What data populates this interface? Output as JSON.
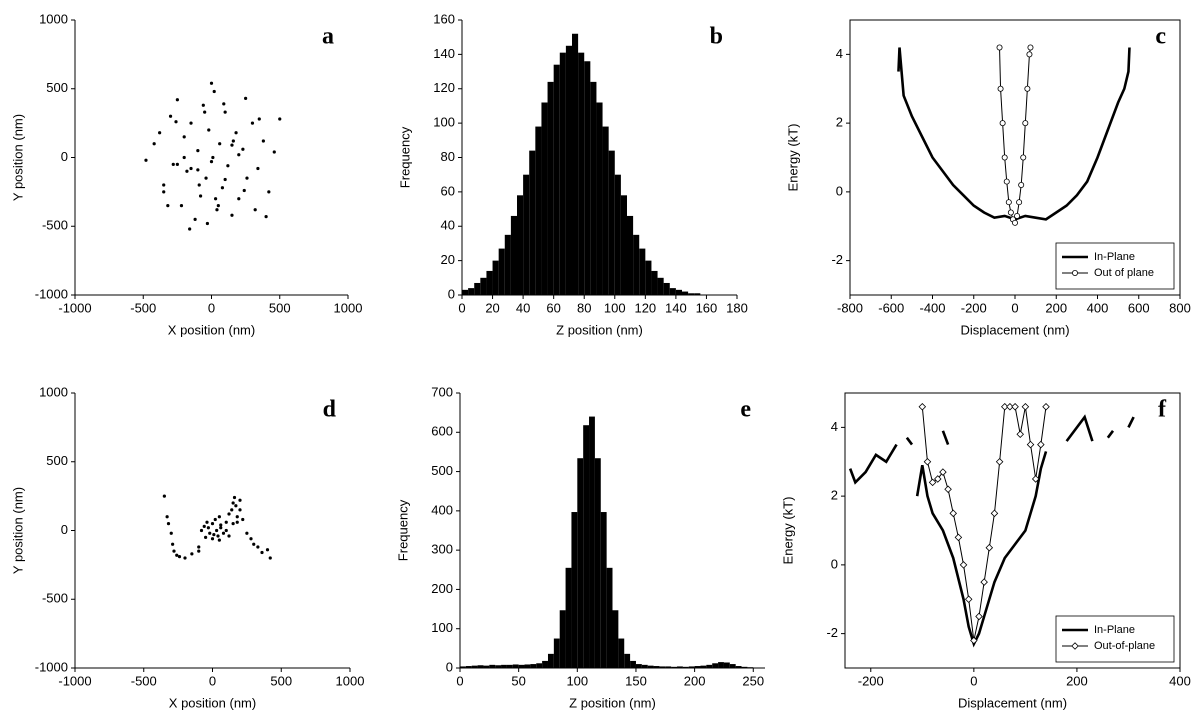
{
  "chart_data": [
    {
      "type": "scatter",
      "annotation": "a",
      "x_label": "X position (nm)",
      "y_label": "Y position (nm)",
      "color": "#000000",
      "x": [
        -420,
        -350,
        -300,
        -280,
        -250,
        -220,
        -200,
        -180,
        -150,
        -120,
        -100,
        -80,
        -60,
        -40,
        -20,
        0,
        20,
        40,
        60,
        80,
        100,
        120,
        150,
        180,
        200,
        230,
        260,
        300,
        340,
        380,
        420,
        460,
        500,
        -480,
        -380,
        -320,
        -260,
        -160,
        -90,
        -30,
        30,
        90,
        160,
        240,
        320,
        400,
        -200,
        -100,
        0,
        100,
        200,
        -50,
        50,
        -250,
        250,
        -350,
        350,
        150,
        -150,
        10
      ],
      "y": [
        100,
        -200,
        300,
        -50,
        420,
        -350,
        150,
        -100,
        250,
        -450,
        50,
        -280,
        380,
        -150,
        200,
        -30,
        480,
        -380,
        100,
        -220,
        330,
        -60,
        -420,
        180,
        -300,
        60,
        -150,
        250,
        -80,
        120,
        -250,
        40,
        280,
        -20,
        180,
        -350,
        260,
        -520,
        -200,
        -480,
        -300,
        390,
        120,
        -240,
        -380,
        -430,
        0,
        -90,
        540,
        -160,
        20,
        330,
        -350,
        -50,
        430,
        -250,
        280,
        90,
        -80,
        0
      ],
      "xlim": [
        -1000,
        1000
      ],
      "xticks": [
        -1000,
        -500,
        0,
        500,
        1000
      ],
      "ylim": [
        -1000,
        1000
      ],
      "yticks": [
        -1000,
        -500,
        0,
        500,
        1000
      ]
    },
    {
      "type": "histogram",
      "annotation": "b",
      "x_label": "Z position (nm)",
      "y_label": "Frequency",
      "color": "#000000",
      "bins": [
        0,
        4,
        8,
        12,
        16,
        20,
        24,
        28,
        32,
        36,
        40,
        44,
        48,
        52,
        56,
        60,
        64,
        68,
        72,
        76,
        80,
        84,
        88,
        92,
        96,
        100,
        104,
        108,
        112,
        116,
        120,
        124,
        128,
        132,
        136,
        140,
        144,
        148,
        152,
        156,
        160
      ],
      "values": [
        3,
        4,
        7,
        10,
        14,
        20,
        27,
        35,
        46,
        58,
        70,
        84,
        98,
        112,
        124,
        134,
        141,
        145,
        152,
        141,
        136,
        124,
        112,
        98,
        84,
        70,
        58,
        46,
        35,
        27,
        20,
        14,
        10,
        7,
        4,
        3,
        2,
        1,
        1,
        0
      ],
      "xlim": [
        0,
        180
      ],
      "xticks": [
        0,
        20,
        40,
        60,
        80,
        100,
        120,
        140,
        160,
        180
      ],
      "ylim": [
        0,
        160
      ],
      "yticks": [
        0,
        20,
        40,
        60,
        80,
        100,
        120,
        140,
        160
      ]
    },
    {
      "type": "line",
      "annotation": "c",
      "x_label": "Displacement (nm)",
      "y_label": "Energy (kT)",
      "frame": true,
      "legend": "lower right",
      "series": [
        {
          "name": "In-Plane",
          "color": "#000000",
          "marker": "none",
          "x": [
            -565,
            -560,
            -540,
            -500,
            -450,
            -400,
            -350,
            -300,
            -250,
            -200,
            -150,
            -100,
            -50,
            0,
            50,
            100,
            150,
            200,
            250,
            300,
            350,
            400,
            450,
            500,
            530,
            550,
            555
          ],
          "values": [
            3.5,
            4.2,
            2.8,
            2.2,
            1.6,
            1.0,
            0.6,
            0.2,
            -0.1,
            -0.4,
            -0.6,
            -0.75,
            -0.7,
            -0.8,
            -0.7,
            -0.75,
            -0.8,
            -0.6,
            -0.4,
            -0.1,
            0.3,
            1.0,
            1.8,
            2.6,
            3.0,
            3.5,
            4.2
          ]
        },
        {
          "name": "Out of plane",
          "color": "#000000",
          "marker": "circle",
          "x": [
            -75,
            -70,
            -60,
            -50,
            -40,
            -30,
            -20,
            -10,
            0,
            10,
            20,
            30,
            40,
            50,
            60,
            70,
            75
          ],
          "values": [
            4.2,
            3.0,
            2.0,
            1.0,
            0.3,
            -0.3,
            -0.6,
            -0.8,
            -0.9,
            -0.7,
            -0.3,
            0.2,
            1.0,
            2.0,
            3.0,
            4.0,
            4.2
          ]
        }
      ],
      "xlim": [
        -800,
        800
      ],
      "xticks": [
        -800,
        -600,
        -400,
        -200,
        0,
        200,
        400,
        600,
        800
      ],
      "ylim": [
        -3,
        5
      ],
      "yticks": [
        -2,
        0,
        2,
        4
      ]
    },
    {
      "type": "scatter",
      "annotation": "d",
      "x_label": "X position (nm)",
      "y_label": "Y position (nm)",
      "color": "#000000",
      "x": [
        -330,
        -320,
        -300,
        -290,
        -280,
        -260,
        -240,
        -200,
        -150,
        -100,
        -80,
        -60,
        -40,
        -20,
        0,
        10,
        20,
        30,
        40,
        50,
        60,
        80,
        100,
        120,
        140,
        150,
        160,
        170,
        180,
        200,
        220,
        250,
        280,
        300,
        330,
        360,
        400,
        420,
        -350,
        -50,
        0,
        50,
        100,
        150,
        200,
        -100,
        -30,
        60,
        120,
        180
      ],
      "y": [
        100,
        50,
        -20,
        -100,
        -150,
        -180,
        -190,
        -200,
        -170,
        -120,
        0,
        30,
        60,
        -20,
        50,
        -30,
        80,
        0,
        -40,
        100,
        20,
        -20,
        60,
        120,
        150,
        200,
        240,
        180,
        100,
        220,
        80,
        -20,
        -60,
        -100,
        -120,
        -160,
        -140,
        -200,
        250,
        -50,
        -60,
        -70,
        0,
        50,
        150,
        -150,
        20,
        40,
        -40,
        60
      ],
      "xlim": [
        -1000,
        1000
      ],
      "xticks": [
        -1000,
        -500,
        0,
        500,
        1000
      ],
      "ylim": [
        -1000,
        1000
      ],
      "yticks": [
        -1000,
        -500,
        0,
        500,
        1000
      ]
    },
    {
      "type": "histogram",
      "annotation": "e",
      "x_label": "Z position (nm)",
      "y_label": "Frequency",
      "color": "#000000",
      "bins": [
        0,
        5,
        10,
        15,
        20,
        25,
        30,
        35,
        40,
        45,
        50,
        55,
        60,
        65,
        70,
        75,
        80,
        85,
        90,
        95,
        100,
        105,
        110,
        115,
        120,
        125,
        130,
        135,
        140,
        145,
        150,
        155,
        160,
        165,
        170,
        175,
        180,
        185,
        190,
        195,
        200,
        205,
        210,
        215,
        220,
        225,
        230,
        235,
        240,
        245,
        250
      ],
      "values": [
        4,
        5,
        6,
        7,
        6,
        8,
        7,
        8,
        8,
        9,
        8,
        9,
        10,
        12,
        18,
        36,
        75,
        147,
        255,
        397,
        534,
        618,
        640,
        534,
        397,
        255,
        147,
        75,
        36,
        18,
        10,
        8,
        6,
        5,
        4,
        4,
        3,
        4,
        3,
        4,
        5,
        6,
        8,
        12,
        15,
        14,
        10,
        5,
        3,
        2
      ],
      "xlim": [
        0,
        260
      ],
      "xticks": [
        0,
        50,
        100,
        150,
        200,
        250
      ],
      "ylim": [
        0,
        700
      ],
      "yticks": [
        0,
        100,
        200,
        300,
        400,
        500,
        600,
        700
      ]
    },
    {
      "type": "line",
      "annotation": "f",
      "x_label": "Displacement (nm)",
      "y_label": "Energy (kT)",
      "frame": true,
      "legend": "lower right",
      "series": [
        {
          "name": "In-Plane",
          "color": "#000000",
          "marker": "none",
          "x": [
            -110,
            -100,
            -90,
            -80,
            -60,
            -40,
            -20,
            -10,
            0,
            10,
            20,
            40,
            60,
            80,
            100,
            110,
            120,
            130,
            140,
            null,
            -240,
            -230,
            -210,
            -190,
            -170,
            -150,
            null,
            -130,
            -120,
            null,
            -60,
            -50,
            null,
            180,
            200,
            215,
            230,
            null,
            260,
            270,
            null,
            300,
            310
          ],
          "values": [
            2.0,
            2.9,
            2.0,
            1.5,
            1.0,
            0.2,
            -1.0,
            -1.8,
            -2.3,
            -2.0,
            -1.5,
            -0.5,
            0.2,
            0.6,
            1.0,
            1.5,
            2.0,
            2.8,
            3.3,
            null,
            2.8,
            2.4,
            2.7,
            3.2,
            3.0,
            3.5,
            null,
            3.7,
            3.5,
            null,
            3.9,
            3.5,
            null,
            3.6,
            4.0,
            4.3,
            3.6,
            null,
            3.7,
            3.9,
            null,
            4.0,
            4.3
          ]
        },
        {
          "name": "Out-of-plane",
          "color": "#000000",
          "marker": "diamond",
          "x": [
            -100,
            -90,
            -80,
            -70,
            -60,
            -50,
            -40,
            -30,
            -20,
            -10,
            0,
            10,
            20,
            30,
            40,
            50,
            60,
            70,
            80,
            90,
            100,
            110,
            120,
            130,
            140
          ],
          "values": [
            4.6,
            3.0,
            2.4,
            2.5,
            2.7,
            2.2,
            1.5,
            0.8,
            0,
            -1,
            -2.2,
            -1.5,
            -0.5,
            0.5,
            1.5,
            3,
            4.6,
            4.6,
            4.6,
            3.8,
            4.6,
            3.5,
            2.5,
            3.5,
            4.6
          ]
        }
      ],
      "xlim": [
        -250,
        400
      ],
      "xticks": [
        -200,
        0,
        200,
        400
      ],
      "ylim": [
        -3,
        5
      ],
      "yticks": [
        -2,
        0,
        2,
        4
      ]
    }
  ]
}
